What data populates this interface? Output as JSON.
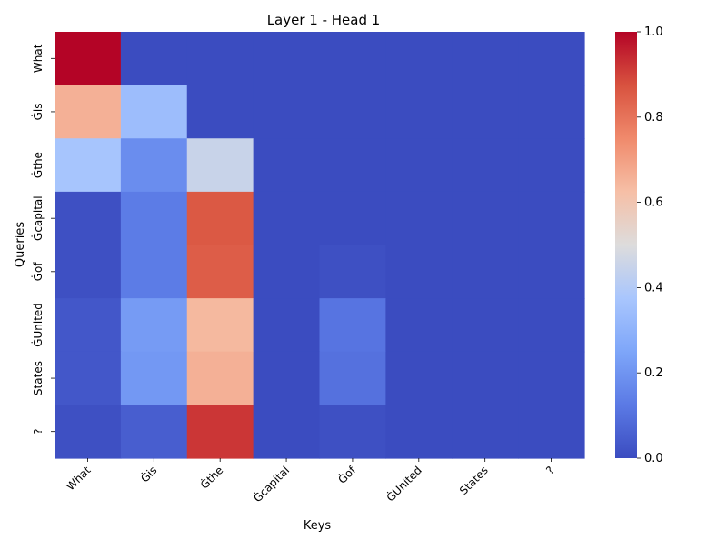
{
  "chart_data": {
    "type": "heatmap",
    "title": "Layer 1 - Head 1",
    "xlabel": "Keys",
    "ylabel": "Queries",
    "x_tick_labels": [
      "What",
      "Ġis",
      "Ġthe",
      "Ġcapital",
      "Ġof",
      "ĠUnited",
      "States",
      "?"
    ],
    "y_tick_labels": [
      "What",
      "Ġis",
      "Ġthe",
      "Ġcapital",
      "Ġof",
      "ĠUnited",
      "States",
      "?"
    ],
    "values": [
      [
        1.0,
        0.0,
        0.0,
        0.0,
        0.0,
        0.0,
        0.0,
        0.0
      ],
      [
        0.66,
        0.34,
        0.0,
        0.0,
        0.0,
        0.0,
        0.0,
        0.0
      ],
      [
        0.37,
        0.18,
        0.45,
        0.0,
        0.0,
        0.0,
        0.0,
        0.0
      ],
      [
        0.01,
        0.13,
        0.86,
        0.0,
        0.0,
        0.0,
        0.0,
        0.0
      ],
      [
        0.01,
        0.13,
        0.85,
        0.0,
        0.01,
        0.0,
        0.0,
        0.0
      ],
      [
        0.03,
        0.22,
        0.64,
        0.0,
        0.11,
        0.0,
        0.0,
        0.0
      ],
      [
        0.03,
        0.21,
        0.66,
        0.0,
        0.1,
        0.0,
        0.0,
        0.0
      ],
      [
        0.01,
        0.05,
        0.92,
        0.0,
        0.01,
        0.0,
        0.0,
        0.0
      ]
    ],
    "colormap": "coolwarm",
    "vmin": 0.0,
    "vmax": 1.0,
    "colorbar_ticks": [
      "0.0",
      "0.2",
      "0.4",
      "0.6",
      "0.8",
      "1.0"
    ],
    "grid": false,
    "legend": "colorbar-right"
  }
}
